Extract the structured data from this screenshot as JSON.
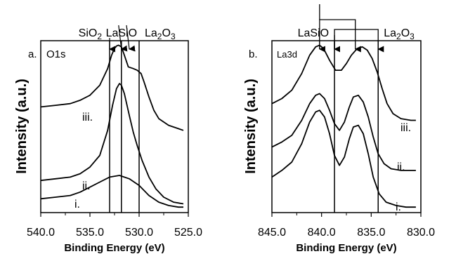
{
  "chart_data": [
    {
      "type": "line",
      "panel_label": "a.",
      "region": "O1s",
      "xlabel": "Binding Energy (eV)",
      "ylabel": "Intensity (a.u.)",
      "xlim": [
        540.0,
        525.0
      ],
      "x_reversed": true,
      "x_ticks": [
        "540.0",
        "535.0",
        "530.0",
        "525.0"
      ],
      "x_tick_values": [
        540,
        535,
        530,
        525
      ],
      "ylim": [
        0,
        1
      ],
      "reference_lines": [
        {
          "x": 533.0,
          "label": "SiO",
          "label_sub": "2"
        },
        {
          "x": 531.8,
          "label": "LaSiO",
          "label_sub": ""
        },
        {
          "x": 530.0,
          "label": "La",
          "label_sub": "2",
          "label_tail": "O",
          "label_sub2": "3"
        }
      ],
      "series": [
        {
          "name": "iii.",
          "x": [
            540.0,
            538.5,
            537.0,
            536.0,
            535.0,
            534.0,
            533.2,
            532.8,
            532.5,
            532.3,
            532.1,
            531.8,
            531.5,
            531.1,
            530.6,
            530.2,
            529.8,
            529.5,
            529.0,
            528.5,
            528.0,
            527.0,
            526.0,
            525.5
          ],
          "y": [
            0.62,
            0.63,
            0.64,
            0.66,
            0.69,
            0.75,
            0.85,
            0.93,
            0.97,
            0.985,
            0.99,
            0.98,
            0.93,
            0.86,
            0.85,
            0.84,
            0.82,
            0.77,
            0.68,
            0.6,
            0.55,
            0.51,
            0.49,
            0.48
          ]
        },
        {
          "name": "ii.",
          "x": [
            540.0,
            538.5,
            537.0,
            536.0,
            535.0,
            534.0,
            533.2,
            532.7,
            532.3,
            532.0,
            531.8,
            531.5,
            531.0,
            530.6,
            530.2,
            529.7,
            529.0,
            528.3,
            527.5,
            526.5,
            525.5
          ],
          "y": [
            0.18,
            0.19,
            0.2,
            0.22,
            0.26,
            0.33,
            0.48,
            0.63,
            0.73,
            0.76,
            0.75,
            0.7,
            0.57,
            0.47,
            0.39,
            0.3,
            0.2,
            0.13,
            0.08,
            0.05,
            0.04
          ]
        },
        {
          "name": "i.",
          "x": [
            540.0,
            538.5,
            537.0,
            536.0,
            535.0,
            534.0,
            533.0,
            532.0,
            531.0,
            530.0,
            529.0,
            528.0,
            527.0,
            526.0,
            525.5
          ],
          "y": [
            0.07,
            0.08,
            0.09,
            0.11,
            0.14,
            0.17,
            0.2,
            0.21,
            0.19,
            0.15,
            0.09,
            0.05,
            0.03,
            0.02,
            0.02
          ]
        }
      ]
    },
    {
      "type": "line",
      "panel_label": "b.",
      "region": "La3d",
      "xlabel": "Binding Energy (eV)",
      "ylabel": "Intensity (a.u.)",
      "xlim": [
        845.0,
        830.0
      ],
      "x_reversed": true,
      "x_ticks": [
        "845.0",
        "840.0",
        "835.0",
        "830.0"
      ],
      "x_tick_values": [
        845,
        840,
        835,
        830
      ],
      "ylim": [
        0,
        1
      ],
      "reference_lines": [
        {
          "x": 838.7,
          "label": "LaSiO",
          "label_sub": ""
        },
        {
          "x": 834.3,
          "label": "La",
          "label_sub": "2",
          "label_tail": "O",
          "label_sub2": "3"
        }
      ],
      "peak_markers": [
        840.2,
        838.7,
        836.6,
        834.3
      ],
      "series": [
        {
          "name": "iii.",
          "x": [
            845.0,
            844.0,
            843.0,
            842.0,
            841.2,
            840.6,
            840.2,
            839.8,
            839.2,
            838.6,
            838.0,
            837.5,
            837.0,
            836.4,
            835.9,
            835.4,
            834.9,
            834.4,
            833.9,
            833.4,
            832.8,
            832.0,
            831.0,
            830.5
          ],
          "y": [
            0.64,
            0.67,
            0.72,
            0.82,
            0.93,
            0.98,
            0.99,
            0.97,
            0.9,
            0.84,
            0.84,
            0.88,
            0.93,
            0.97,
            0.98,
            0.96,
            0.91,
            0.83,
            0.73,
            0.64,
            0.58,
            0.55,
            0.54,
            0.54
          ]
        },
        {
          "name": "ii.",
          "x": [
            845.0,
            844.0,
            843.0,
            842.0,
            841.2,
            840.6,
            840.2,
            839.7,
            839.2,
            838.7,
            838.2,
            837.7,
            837.2,
            836.8,
            836.3,
            835.8,
            835.3,
            834.8,
            834.3,
            833.7,
            833.0,
            832.0,
            831.0,
            830.5
          ],
          "y": [
            0.38,
            0.41,
            0.45,
            0.54,
            0.64,
            0.69,
            0.7,
            0.67,
            0.6,
            0.52,
            0.48,
            0.53,
            0.62,
            0.68,
            0.69,
            0.65,
            0.56,
            0.44,
            0.34,
            0.28,
            0.25,
            0.24,
            0.24,
            0.24
          ]
        },
        {
          "name": "i.",
          "x": [
            845.0,
            844.0,
            843.0,
            842.0,
            841.2,
            840.6,
            840.2,
            839.7,
            839.2,
            838.7,
            838.2,
            837.7,
            837.2,
            836.8,
            836.3,
            835.8,
            835.3,
            834.8,
            834.2,
            833.5,
            832.5,
            831.5,
            831.0,
            830.5
          ],
          "y": [
            0.2,
            0.24,
            0.29,
            0.4,
            0.53,
            0.59,
            0.6,
            0.56,
            0.46,
            0.33,
            0.27,
            0.32,
            0.43,
            0.5,
            0.51,
            0.46,
            0.34,
            0.2,
            0.1,
            0.05,
            0.03,
            0.02,
            0.02,
            0.02
          ]
        }
      ]
    }
  ]
}
